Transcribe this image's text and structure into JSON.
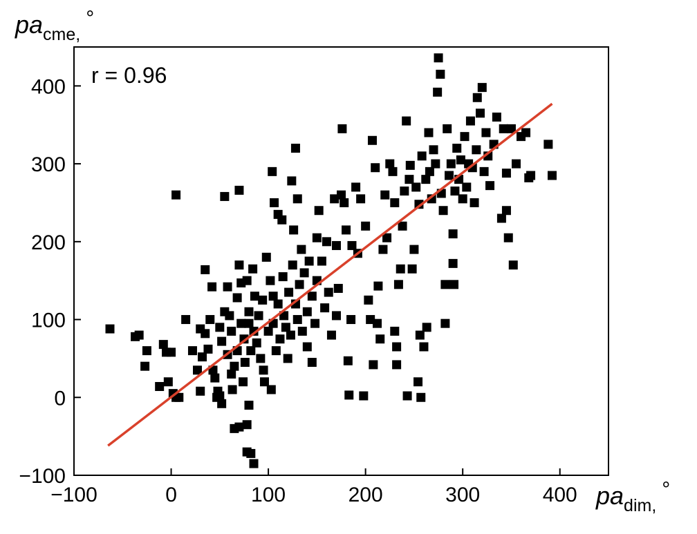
{
  "chart_data": {
    "type": "scatter",
    "annotation": "r = 0.96",
    "xlabel": {
      "text": "pa",
      "subscript": "dim,",
      "suffix": "°"
    },
    "ylabel": {
      "text": "pa",
      "subscript": "cme,",
      "suffix": "°"
    },
    "xlim": [
      -100,
      450
    ],
    "ylim": [
      -100,
      450
    ],
    "xticks": [
      {
        "value": -100,
        "label": "−100"
      },
      0,
      100,
      200,
      300,
      400
    ],
    "yticks": [
      {
        "value": -100,
        "label": "−100"
      },
      0,
      100,
      200,
      300,
      400
    ],
    "color": "#000000",
    "x": [
      -63,
      -37,
      -33,
      -27,
      -25,
      -12,
      -8,
      -5,
      -3,
      0,
      2,
      5,
      8,
      5,
      15,
      22,
      27,
      30,
      30,
      32,
      35,
      35,
      38,
      40,
      42,
      43,
      45,
      47,
      48,
      50,
      52,
      50,
      52,
      55,
      55,
      58,
      58,
      60,
      62,
      62,
      63,
      65,
      65,
      68,
      68,
      70,
      70,
      70,
      72,
      72,
      74,
      75,
      76,
      78,
      78,
      78,
      80,
      80,
      80,
      82,
      82,
      84,
      85,
      85,
      86,
      88,
      90,
      92,
      94,
      95,
      96,
      98,
      100,
      102,
      103,
      104,
      105,
      105,
      106,
      108,
      110,
      110,
      112,
      114,
      115,
      116,
      118,
      120,
      121,
      123,
      124,
      125,
      126,
      128,
      128,
      130,
      130,
      132,
      134,
      135,
      137,
      140,
      140,
      142,
      145,
      145,
      148,
      150,
      150,
      152,
      155,
      158,
      160,
      162,
      165,
      168,
      170,
      170,
      172,
      175,
      176,
      178,
      180,
      182,
      183,
      185,
      186,
      190,
      192,
      195,
      198,
      200,
      203,
      205,
      207,
      208,
      210,
      212,
      213,
      215,
      218,
      220,
      222,
      225,
      228,
      230,
      230,
      232,
      232,
      234,
      236,
      238,
      240,
      242,
      243,
      245,
      246,
      248,
      250,
      252,
      254,
      255,
      256,
      257,
      258,
      260,
      262,
      263,
      265,
      266,
      268,
      270,
      272,
      274,
      275,
      277,
      278,
      280,
      282,
      282,
      284,
      286,
      288,
      290,
      290,
      291,
      292,
      294,
      296,
      298,
      300,
      302,
      304,
      306,
      308,
      310,
      312,
      314,
      315,
      318,
      320,
      322,
      324,
      326,
      328,
      332,
      335,
      340,
      342,
      345,
      345,
      347,
      350,
      352,
      355,
      360,
      365,
      368,
      370,
      388,
      392
    ],
    "values": [
      88,
      78,
      80,
      40,
      60,
      14,
      68,
      58,
      20,
      58,
      5,
      0,
      0,
      260,
      100,
      60,
      35,
      88,
      8,
      52,
      82,
      164,
      62,
      100,
      142,
      35,
      25,
      0,
      8,
      2,
      -8,
      90,
      72,
      110,
      258,
      55,
      142,
      105,
      85,
      30,
      10,
      -40,
      40,
      60,
      128,
      170,
      266,
      -38,
      95,
      147,
      20,
      75,
      45,
      -70,
      -35,
      150,
      95,
      110,
      -10,
      -72,
      60,
      165,
      -85,
      85,
      130,
      70,
      105,
      50,
      125,
      35,
      20,
      180,
      85,
      150,
      10,
      290,
      130,
      95,
      250,
      60,
      120,
      235,
      75,
      228,
      155,
      105,
      90,
      50,
      135,
      80,
      278,
      170,
      215,
      120,
      320,
      255,
      100,
      145,
      190,
      85,
      160,
      110,
      65,
      175,
      45,
      130,
      95,
      150,
      205,
      240,
      175,
      115,
      200,
      135,
      80,
      255,
      105,
      195,
      140,
      260,
      345,
      250,
      215,
      47,
      3,
      100,
      195,
      270,
      185,
      255,
      2,
      220,
      125,
      100,
      330,
      42,
      295,
      95,
      143,
      75,
      190,
      260,
      205,
      300,
      290,
      85,
      250,
      42,
      65,
      145,
      165,
      220,
      265,
      355,
      2,
      280,
      298,
      165,
      190,
      270,
      20,
      248,
      80,
      0,
      310,
      65,
      280,
      90,
      340,
      290,
      255,
      318,
      300,
      392,
      436,
      415,
      262,
      240,
      95,
      145,
      345,
      285,
      300,
      172,
      210,
      145,
      265,
      320,
      280,
      305,
      255,
      335,
      270,
      300,
      355,
      295,
      250,
      318,
      385,
      365,
      398,
      290,
      340,
      310,
      272,
      325,
      360,
      230,
      345,
      288,
      240,
      205,
      345,
      170,
      300,
      335,
      340,
      282,
      285,
      325,
      285
    ],
    "trend_line": {
      "x": [
        -65,
        392
      ],
      "values": [
        -62,
        377
      ],
      "color": "#d9412b"
    }
  }
}
